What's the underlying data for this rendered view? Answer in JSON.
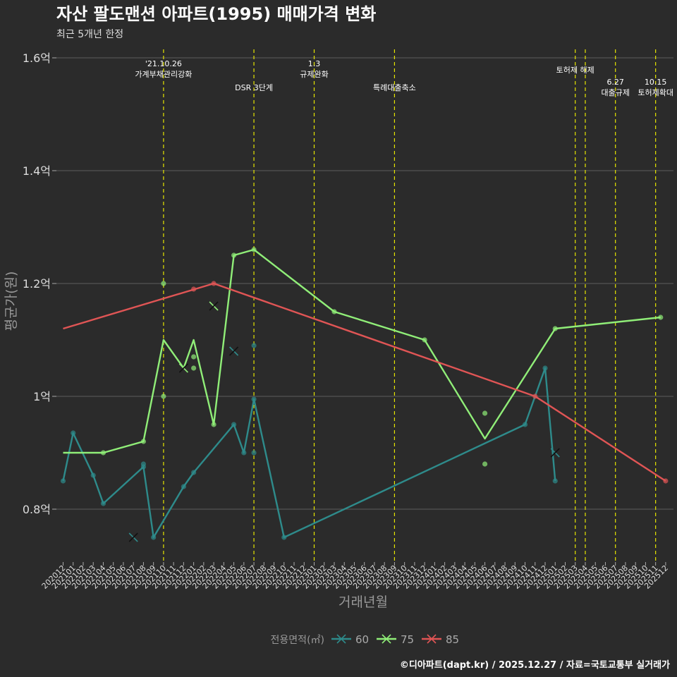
{
  "chart_data": {
    "type": "line",
    "title": "자산 팔도맨션 아파트(1995) 매매가격 변화",
    "subtitle": "최근 5개년 한정",
    "xlabel": "거래년월",
    "ylabel": "평균가(원)",
    "caption": "©디아파트(dapt.kr) / 2025.12.27 / 자료=국토교통부 실거래가",
    "legend_title": "전용면적(㎡)",
    "legend_position": "bottom",
    "ylim": [
      0.7,
      1.63
    ],
    "y_ticks": [
      {
        "value": 0.8,
        "label": "0.8억"
      },
      {
        "value": 1.0,
        "label": "1억"
      },
      {
        "value": 1.2,
        "label": "1.2억"
      },
      {
        "value": 1.4,
        "label": "1.4억"
      },
      {
        "value": 1.6,
        "label": "1.6억"
      }
    ],
    "x_ticks": [
      "202012",
      "202101",
      "202102",
      "202103",
      "202104",
      "202105",
      "202106",
      "202107",
      "202108",
      "202109",
      "202110",
      "202111",
      "202112",
      "202201",
      "202202",
      "202203",
      "202204",
      "202205",
      "202206",
      "202207",
      "202208",
      "202209",
      "202210",
      "202211",
      "202212",
      "202301",
      "202302",
      "202303",
      "202304",
      "202305",
      "202306",
      "202307",
      "202308",
      "202309",
      "202310",
      "202311",
      "202312",
      "202401",
      "202402",
      "202403",
      "202404",
      "202405",
      "202406",
      "202407",
      "202408",
      "202409",
      "202410",
      "202411",
      "202412",
      "202501",
      "202502",
      "202503",
      "202504",
      "202505",
      "202506",
      "202507",
      "202508",
      "202509",
      "202510",
      "202511",
      "202512"
    ],
    "events": [
      {
        "x": 10,
        "lines": [
          "'21.10.26",
          "가계부채관리강화"
        ],
        "level": 1
      },
      {
        "x": 19,
        "lines": [
          "DSR 3단계"
        ],
        "level": 3
      },
      {
        "x": 25,
        "lines": [
          "1.3",
          "규제완화"
        ],
        "level": 1
      },
      {
        "x": 33,
        "lines": [
          "특례대출축소"
        ],
        "level": 3
      },
      {
        "x": 51,
        "lines": [
          "토허제 해제"
        ],
        "level": 2
      },
      {
        "x": 52,
        "lines": [],
        "level": 0
      },
      {
        "x": 55,
        "lines": [
          "6.27",
          "대출규제"
        ],
        "level": 4
      },
      {
        "x": 59,
        "lines": [
          "10.15",
          "토허제확대"
        ],
        "level": 4
      }
    ],
    "series": [
      {
        "name": "60",
        "color": "#2e8b8b",
        "line": [
          [
            0,
            0.85
          ],
          [
            1,
            0.935
          ],
          [
            3,
            0.86
          ],
          [
            4,
            0.81
          ],
          [
            8,
            0.875
          ],
          [
            9,
            0.75
          ],
          [
            12,
            0.84
          ],
          [
            13,
            0.865
          ],
          [
            17,
            0.95
          ],
          [
            18,
            0.9
          ],
          [
            19,
            0.995
          ],
          [
            22,
            0.75
          ],
          [
            46,
            0.95
          ],
          [
            48,
            1.05
          ],
          [
            49,
            0.85
          ]
        ],
        "points": [
          [
            0,
            0.85
          ],
          [
            1,
            0.935
          ],
          [
            3,
            0.86
          ],
          [
            4,
            0.81
          ],
          [
            8,
            0.875
          ],
          [
            8,
            0.88
          ],
          [
            9,
            0.75
          ],
          [
            12,
            0.84
          ],
          [
            13,
            0.865
          ],
          [
            17,
            0.95
          ],
          [
            18,
            0.9
          ],
          [
            19,
            0.995
          ],
          [
            19,
            1.09
          ],
          [
            19,
            0.9
          ],
          [
            22,
            0.75
          ],
          [
            46,
            0.95
          ],
          [
            48,
            1.05
          ],
          [
            49,
            0.85
          ]
        ],
        "crosses": [
          [
            7,
            0.75
          ],
          [
            17,
            1.08
          ],
          [
            49,
            0.9
          ]
        ]
      },
      {
        "name": "75",
        "color": "#90ee78",
        "line": [
          [
            0,
            0.9
          ],
          [
            4,
            0.9
          ],
          [
            8,
            0.92
          ],
          [
            10,
            1.1
          ],
          [
            12,
            1.05
          ],
          [
            13,
            1.1
          ],
          [
            15,
            0.95
          ],
          [
            17,
            1.25
          ],
          [
            19,
            1.26
          ],
          [
            27,
            1.15
          ],
          [
            36,
            1.1
          ],
          [
            42,
            0.925
          ],
          [
            49,
            1.12
          ],
          [
            59.5,
            1.14
          ]
        ],
        "points": [
          [
            4,
            0.9
          ],
          [
            8,
            0.92
          ],
          [
            10,
            1.2
          ],
          [
            10,
            1.0
          ],
          [
            13,
            1.07
          ],
          [
            13,
            1.05
          ],
          [
            15,
            0.95
          ],
          [
            17,
            1.25
          ],
          [
            19,
            1.26
          ],
          [
            27,
            1.15
          ],
          [
            36,
            1.1
          ],
          [
            42,
            0.97
          ],
          [
            42,
            0.88
          ],
          [
            49,
            1.12
          ],
          [
            59.5,
            1.14
          ]
        ],
        "crosses": [
          [
            12,
            1.05
          ],
          [
            15,
            1.16
          ]
        ]
      },
      {
        "name": "85",
        "color": "#e05555",
        "line": [
          [
            0,
            1.12
          ],
          [
            15,
            1.2
          ],
          [
            47,
            1.0
          ],
          [
            60,
            0.85
          ]
        ],
        "points": [
          [
            13,
            1.19
          ],
          [
            15,
            1.2
          ],
          [
            47,
            1.0
          ],
          [
            60,
            0.85
          ]
        ],
        "crosses": []
      }
    ]
  }
}
